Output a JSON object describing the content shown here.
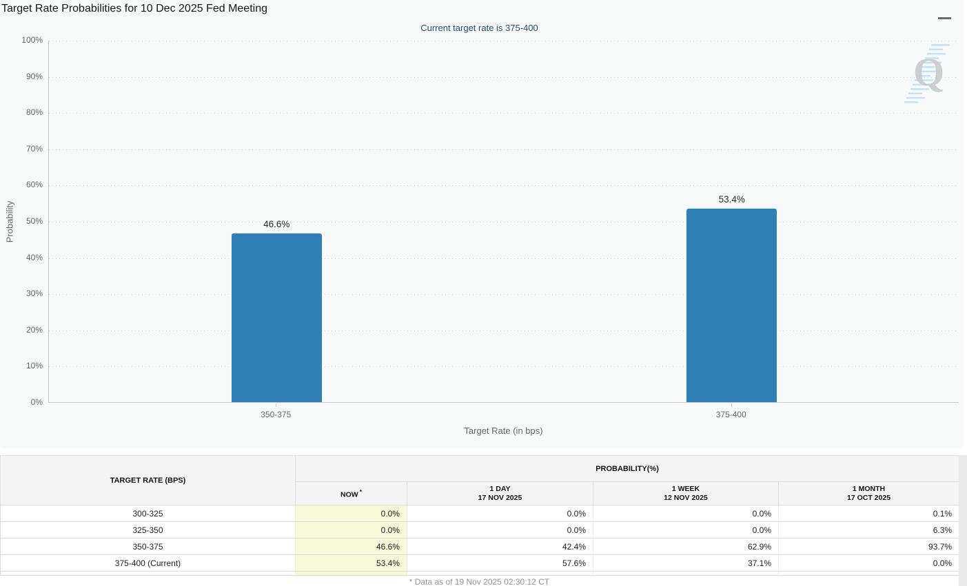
{
  "page": {
    "title": "Target Rate Probabilities for 10 Dec 2025 Fed Meeting"
  },
  "toolbar": {
    "menu_icon": "hamburger-menu"
  },
  "chart_data": {
    "type": "bar",
    "title": "Target Rate Probabilities for 10 Dec 2025 Fed Meeting",
    "subtitle": "Current target rate is 375-400",
    "categories": [
      "350-375",
      "375-400"
    ],
    "values": [
      46.6,
      53.4
    ],
    "value_labels": [
      "46.6%",
      "53.4%"
    ],
    "xlabel": "Target Rate (in bps)",
    "ylabel": "Probability",
    "ylim": [
      0,
      100
    ],
    "ytick_step": 10,
    "ytick_labels": [
      "0%",
      "10%",
      "20%",
      "30%",
      "40%",
      "50%",
      "60%",
      "70%",
      "80%",
      "90%",
      "100%"
    ],
    "grid": "dotted-horizontal",
    "legend": "none",
    "bar_color": "#2f7fb8",
    "watermark_letter": "Q"
  },
  "table": {
    "rate_header": "TARGET RATE (BPS)",
    "group_header": "PROBABILITY(%)",
    "columns": [
      {
        "label": "NOW",
        "sup": "*",
        "sub": ""
      },
      {
        "label": "1 DAY",
        "sup": "",
        "sub": "17 NOV 2025"
      },
      {
        "label": "1 WEEK",
        "sup": "",
        "sub": "12 NOV 2025"
      },
      {
        "label": "1 MONTH",
        "sup": "",
        "sub": "17 OCT 2025"
      }
    ],
    "rows": [
      {
        "rate": "300-325",
        "values": [
          "0.0%",
          "0.0%",
          "0.0%",
          "0.1%"
        ]
      },
      {
        "rate": "325-350",
        "values": [
          "0.0%",
          "0.0%",
          "0.0%",
          "6.3%"
        ]
      },
      {
        "rate": "350-375",
        "values": [
          "46.6%",
          "42.4%",
          "62.9%",
          "93.7%"
        ]
      },
      {
        "rate": "375-400 (Current)",
        "values": [
          "53.4%",
          "57.6%",
          "37.1%",
          "0.0%"
        ]
      }
    ],
    "highlight_color": "#f8f9d9"
  },
  "footer": {
    "note": "* Data as of 19 Nov 2025 02:30:12 CT"
  }
}
